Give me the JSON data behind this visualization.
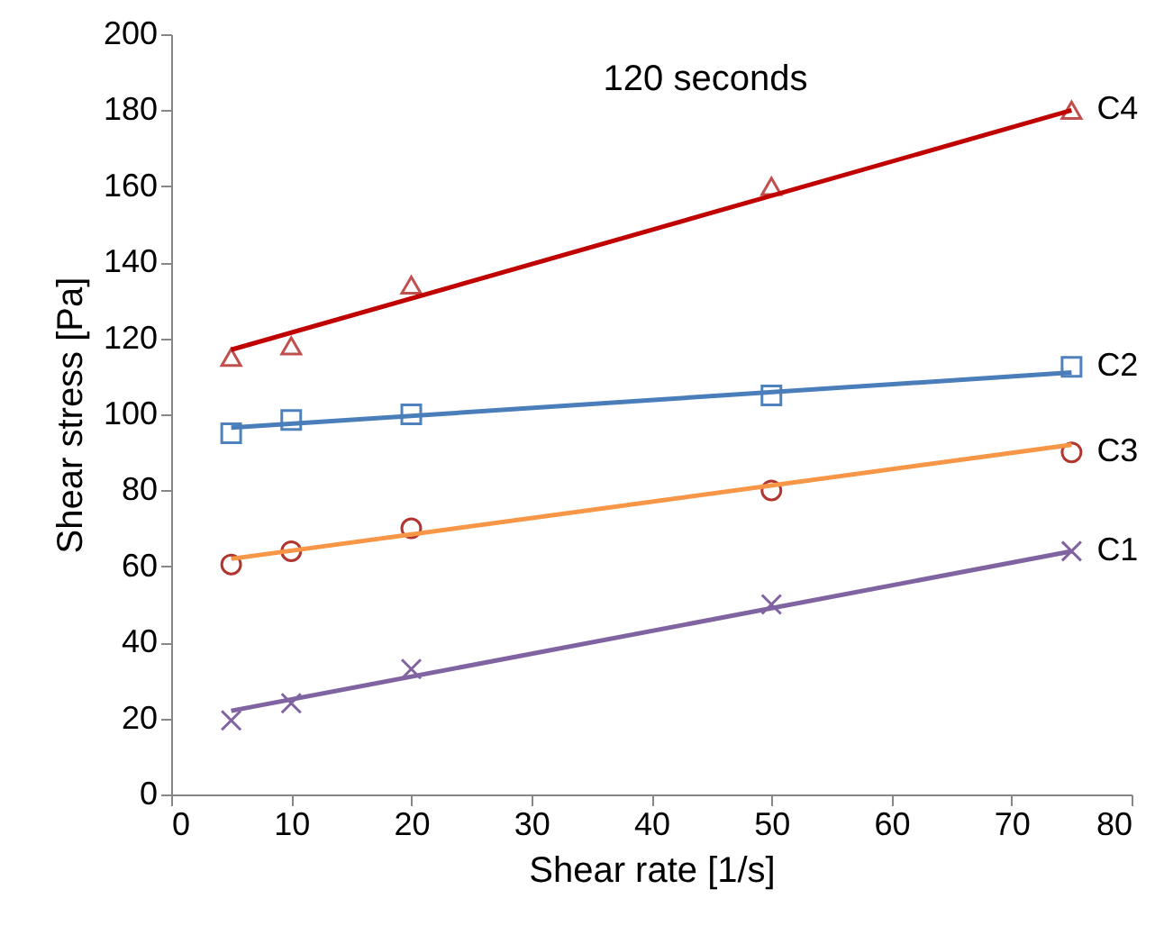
{
  "chart_data": {
    "type": "scatter",
    "title": "120 seconds",
    "xlabel": "Shear rate [1/s]",
    "ylabel": "Shear stress [Pa]",
    "xlim": [
      0,
      80
    ],
    "xticks": [
      0,
      10,
      20,
      30,
      40,
      50,
      60,
      70,
      80
    ],
    "ylim": [
      0,
      200
    ],
    "yticks": [
      0,
      20,
      40,
      60,
      80,
      100,
      120,
      140,
      160,
      180,
      200
    ],
    "grid": false,
    "series": [
      {
        "name": "C4",
        "marker": "triangle",
        "color": "#c0504d",
        "x": [
          5,
          10,
          20,
          50,
          75
        ],
        "values": [
          115,
          118,
          134,
          160,
          180
        ]
      },
      {
        "type": "line",
        "marker": "none",
        "color": "#c00000",
        "x": [
          5,
          75
        ],
        "values": [
          117,
          180
        ]
      },
      {
        "name": "C2",
        "marker": "square",
        "color": "#4f81bd",
        "x": [
          5,
          10,
          20,
          50,
          75
        ],
        "values": [
          95,
          98.5,
          100,
          105,
          112.5
        ]
      },
      {
        "type": "line",
        "marker": "none",
        "color": "#4a7ebb",
        "x": [
          5,
          75
        ],
        "values": [
          96.5,
          111
        ]
      },
      {
        "name": "C3",
        "marker": "circle",
        "color": "#b0362f",
        "x": [
          5,
          10,
          20,
          50,
          75
        ],
        "values": [
          60.5,
          64,
          70,
          80,
          90
        ]
      },
      {
        "type": "line",
        "marker": "none",
        "color": "#f79646",
        "x": [
          5,
          75
        ],
        "values": [
          62,
          92
        ]
      },
      {
        "name": "C1",
        "marker": "cross",
        "color": "#8064a2",
        "x": [
          5,
          10,
          20,
          50,
          75
        ],
        "values": [
          19.5,
          24,
          33,
          50,
          64
        ]
      },
      {
        "type": "line",
        "marker": "none",
        "color": "#8064a2",
        "x": [
          5,
          75
        ],
        "values": [
          22,
          64
        ]
      }
    ]
  }
}
